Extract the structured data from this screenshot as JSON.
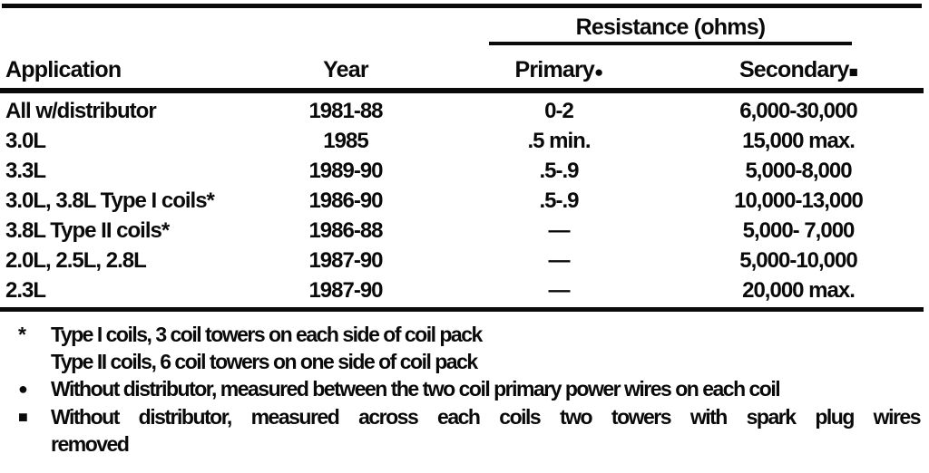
{
  "table": {
    "group_header": "Resistance (ohms)",
    "columns": [
      {
        "label": "Application"
      },
      {
        "label": "Year"
      },
      {
        "label": "Primary",
        "marker": "●"
      },
      {
        "label": "Secondary",
        "marker": "■"
      }
    ],
    "rows": [
      {
        "application": "All w/distributor",
        "year": "1981-88",
        "primary": "0-2",
        "secondary": "6,000-30,000"
      },
      {
        "application": "3.0L",
        "year": "1985",
        "primary": ".5 min.",
        "secondary": "15,000 max."
      },
      {
        "application": "3.3L",
        "year": "1989-90",
        "primary": ".5-.9",
        "secondary": "5,000-8,000"
      },
      {
        "application": "3.0L, 3.8L Type I coils*",
        "year": "1986-90",
        "primary": ".5-.9",
        "secondary": "10,000-13,000"
      },
      {
        "application": "3.8L Type II coils*",
        "year": "1986-88",
        "primary": "—",
        "secondary": "5,000- 7,000"
      },
      {
        "application": "2.0L, 2.5L, 2.8L",
        "year": "1987-90",
        "primary": "—",
        "secondary": "5,000-10,000"
      },
      {
        "application": "2.3L",
        "year": "1987-90",
        "primary": "—",
        "secondary": "20,000 max."
      }
    ],
    "footnotes": [
      {
        "marker": "*",
        "line1": "Type I coils, 3 coil towers on each side of coil pack",
        "line2": "Type II coils, 6 coil towers on one side of coil pack"
      },
      {
        "marker": "●",
        "line1": "Without distributor, measured between the two coil primary power wires on each coil"
      },
      {
        "marker": "■",
        "line1": "Without distributor, measured across each coils two towers with spark plug wires",
        "line2": "removed"
      }
    ]
  }
}
